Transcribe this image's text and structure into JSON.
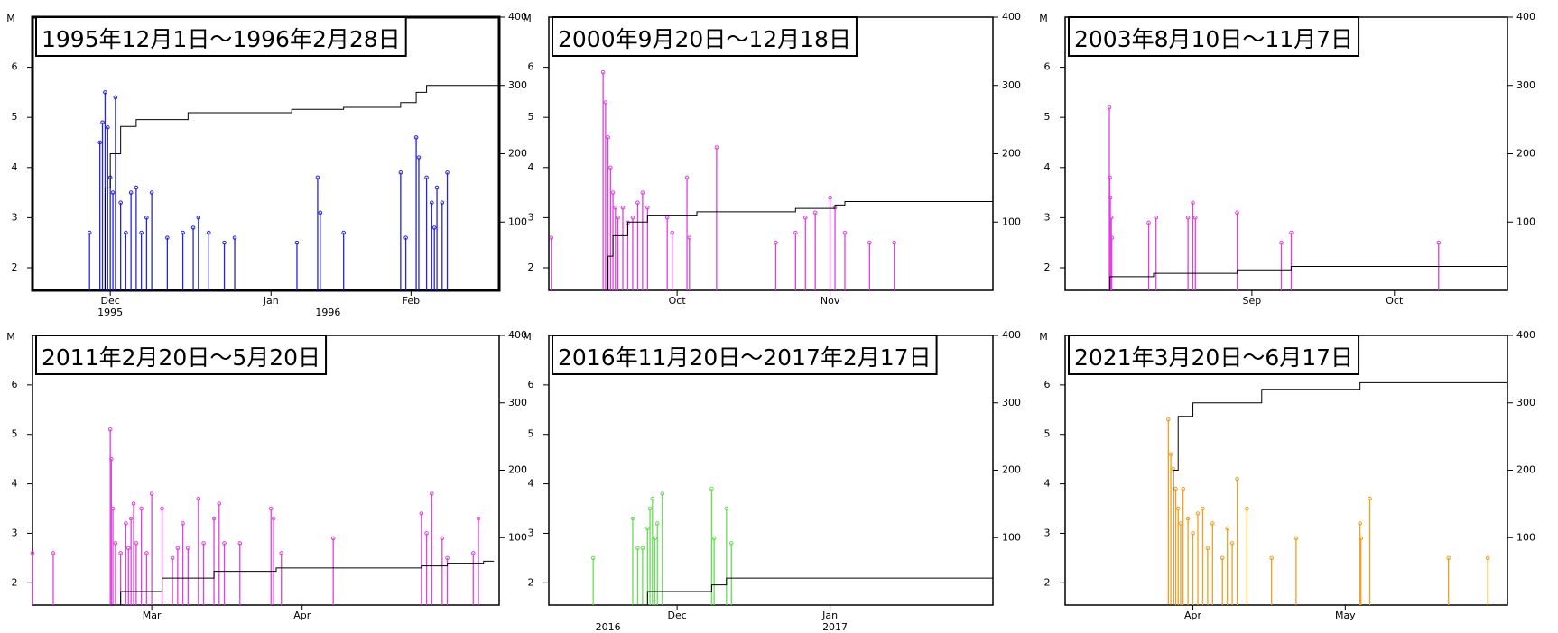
{
  "chart_data": [
    {
      "type": "stem",
      "title": "1995年12月1日～1996年2月28日",
      "ylabel": "M",
      "xlim": [
        0,
        90
      ],
      "ylim": [
        1.55,
        7
      ],
      "y2lim": [
        0,
        400
      ],
      "yticks": [
        2,
        3,
        4,
        5,
        6
      ],
      "y2ticks": [
        100,
        200,
        300,
        400
      ],
      "xticks": [
        {
          "value": 15,
          "label": "Dec"
        },
        {
          "value": 46,
          "label": "Jan"
        },
        {
          "value": 73,
          "label": "Feb"
        }
      ],
      "xticks_year": [
        {
          "value": 15,
          "label": "1995"
        },
        {
          "value": 57,
          "label": "1996"
        }
      ],
      "series": [
        {
          "type": "stem",
          "color": "#2626d9",
          "x": [
            11,
            13,
            13.5,
            14,
            14.5,
            15,
            15.5,
            16,
            17,
            18,
            19,
            20,
            21,
            22,
            23,
            26,
            29,
            31,
            32,
            34,
            37,
            39,
            51,
            55,
            55.5,
            60,
            71,
            72,
            74,
            74.5,
            76,
            77,
            77.5,
            78,
            79,
            80
          ],
          "values": [
            2.7,
            4.5,
            4.9,
            5.5,
            4.8,
            3.8,
            3.5,
            5.4,
            3.3,
            2.7,
            3.5,
            3.6,
            2.7,
            3.0,
            3.5,
            2.6,
            2.7,
            2.8,
            3.0,
            2.7,
            2.5,
            2.6,
            2.5,
            3.8,
            3.1,
            2.7,
            3.9,
            2.6,
            4.6,
            4.2,
            3.8,
            3.3,
            2.8,
            3.6,
            3.3,
            3.9
          ]
        },
        {
          "type": "step",
          "axis": "y2",
          "color": "#000000",
          "x": [
            13,
            14,
            15,
            17,
            20,
            30,
            50,
            60,
            71,
            74,
            76,
            90
          ],
          "values": [
            0,
            150,
            200,
            240,
            250,
            260,
            265,
            268,
            275,
            290,
            300,
            300
          ]
        }
      ]
    },
    {
      "type": "stem",
      "title": "2000年9月20日～12月18日",
      "ylabel": "M",
      "xlim": [
        0,
        90
      ],
      "ylim": [
        1.55,
        7
      ],
      "y2lim": [
        0,
        400
      ],
      "yticks": [
        2,
        3,
        4,
        5,
        6
      ],
      "y2ticks": [
        100,
        200,
        300,
        400
      ],
      "xticks": [
        {
          "value": 26,
          "label": "Oct"
        },
        {
          "value": 57,
          "label": "Nov"
        }
      ],
      "xticks_year": [],
      "series": [
        {
          "type": "stem",
          "color": "#e040e0",
          "x": [
            0.5,
            11,
            11.5,
            12,
            12.5,
            13,
            13.5,
            14,
            15,
            16,
            17,
            18,
            19,
            20,
            24,
            25,
            28,
            28.5,
            34,
            46,
            50,
            52,
            54,
            57,
            58,
            60,
            65,
            70
          ],
          "values": [
            2.6,
            5.9,
            5.3,
            4.6,
            4.0,
            3.5,
            3.2,
            3.0,
            3.2,
            2.9,
            3.0,
            3.3,
            3.5,
            3.2,
            3.0,
            2.7,
            3.8,
            2.6,
            4.4,
            2.5,
            2.7,
            3.0,
            3.1,
            3.4,
            3.2,
            2.7,
            2.5,
            2.5
          ]
        },
        {
          "type": "step",
          "axis": "y2",
          "color": "#000000",
          "x": [
            11,
            12,
            13,
            16,
            20,
            30,
            50,
            58,
            60,
            90
          ],
          "values": [
            0,
            50,
            80,
            100,
            110,
            115,
            120,
            125,
            130,
            130
          ]
        }
      ]
    },
    {
      "type": "stem",
      "title": "2003年8月10日～11月7日",
      "ylabel": "M",
      "xlim": [
        0,
        90
      ],
      "ylim": [
        1.55,
        7
      ],
      "y2lim": [
        0,
        400
      ],
      "yticks": [
        2,
        3,
        4,
        5,
        6
      ],
      "y2ticks": [
        100,
        200,
        300,
        400
      ],
      "xticks": [
        {
          "value": 38,
          "label": "Sep"
        },
        {
          "value": 67,
          "label": "Oct"
        }
      ],
      "xticks_year": [],
      "series": [
        {
          "type": "stem",
          "color": "#e040e0",
          "x": [
            9,
            9.1,
            9.2,
            9.4,
            9.5,
            17,
            18.5,
            25,
            26,
            26.5,
            35,
            44,
            46,
            76
          ],
          "values": [
            5.2,
            3.8,
            3.4,
            3.0,
            2.6,
            2.9,
            3.0,
            3.0,
            3.3,
            3.0,
            3.1,
            2.5,
            2.7,
            2.5
          ]
        },
        {
          "type": "step",
          "axis": "y2",
          "color": "#000000",
          "x": [
            9,
            9.1,
            18,
            35,
            46,
            90
          ],
          "values": [
            0,
            20,
            25,
            30,
            35,
            35
          ]
        }
      ]
    },
    {
      "type": "stem",
      "title": "2011年2月20日～5月20日",
      "ylabel": "M",
      "xlim": [
        0,
        90
      ],
      "ylim": [
        1.55,
        7
      ],
      "y2lim": [
        0,
        400
      ],
      "yticks": [
        2,
        3,
        4,
        5,
        6
      ],
      "y2ticks": [
        100,
        200,
        300,
        400
      ],
      "xticks": [
        {
          "value": 23,
          "label": "Mar"
        },
        {
          "value": 52,
          "label": "Apr"
        }
      ],
      "xticks_year": [],
      "series": [
        {
          "type": "stem",
          "color": "#e040e0",
          "x": [
            0,
            4,
            15,
            15.2,
            15.5,
            16,
            17,
            18,
            18.5,
            19,
            19.5,
            20,
            21,
            22,
            23,
            25,
            27,
            28,
            29,
            30,
            32,
            33,
            35,
            36,
            37,
            40,
            46,
            46.5,
            48,
            58,
            75,
            76,
            77,
            79,
            80,
            85,
            86
          ],
          "values": [
            2.6,
            2.6,
            5.1,
            4.5,
            3.5,
            2.8,
            2.6,
            3.2,
            2.7,
            3.3,
            3.6,
            2.8,
            3.5,
            2.6,
            3.8,
            3.5,
            2.5,
            2.7,
            3.2,
            2.7,
            3.7,
            2.8,
            3.3,
            3.6,
            2.8,
            2.8,
            3.5,
            3.3,
            2.6,
            2.9,
            3.4,
            3.0,
            3.8,
            2.9,
            2.5,
            2.6,
            3.3
          ]
        },
        {
          "type": "step",
          "axis": "y2",
          "color": "#000000",
          "x": [
            15,
            17,
            25,
            35,
            47,
            75,
            80,
            87,
            89
          ],
          "values": [
            0,
            20,
            40,
            50,
            55,
            58,
            62,
            65,
            65
          ]
        }
      ]
    },
    {
      "type": "stem",
      "title": "2016年11月20日～2017年2月17日",
      "ylabel": "M",
      "xlim": [
        0,
        90
      ],
      "ylim": [
        1.55,
        7
      ],
      "y2lim": [
        0,
        400
      ],
      "yticks": [
        2,
        3,
        4,
        5,
        6
      ],
      "y2ticks": [
        100,
        200,
        300,
        400
      ],
      "xticks": [
        {
          "value": 26,
          "label": "Dec"
        },
        {
          "value": 57,
          "label": "Jan"
        }
      ],
      "xticks_year": [
        {
          "value": 12,
          "label": "2016"
        },
        {
          "value": 58,
          "label": "2017"
        }
      ],
      "series": [
        {
          "type": "stem",
          "color": "#66dd55",
          "x": [
            9,
            17,
            18,
            19,
            20,
            20.5,
            21,
            21.5,
            22,
            23,
            33,
            33.5,
            36,
            37
          ],
          "values": [
            2.5,
            3.3,
            2.7,
            2.7,
            3.1,
            3.5,
            3.7,
            2.9,
            3.2,
            3.8,
            3.9,
            2.9,
            3.5,
            2.8
          ]
        },
        {
          "type": "step",
          "axis": "y2",
          "color": "#000000",
          "x": [
            17,
            20,
            33,
            36,
            90
          ],
          "values": [
            0,
            20,
            30,
            40,
            40
          ]
        }
      ]
    },
    {
      "type": "stem",
      "title": "2021年3月20日～6月17日",
      "ylabel": "M",
      "xlim": [
        0,
        90
      ],
      "ylim": [
        1.55,
        7
      ],
      "y2lim": [
        0,
        400
      ],
      "yticks": [
        2,
        3,
        4,
        5,
        6
      ],
      "y2ticks": [
        100,
        200,
        300,
        400
      ],
      "xticks": [
        {
          "value": 26,
          "label": "Apr"
        },
        {
          "value": 57,
          "label": "May"
        }
      ],
      "xticks_year": [],
      "series": [
        {
          "type": "stem",
          "color": "#f0a020",
          "x": [
            21,
            21.5,
            22,
            22.5,
            23,
            23.5,
            24,
            25,
            26,
            27,
            28,
            29,
            30,
            32,
            33,
            34,
            35,
            37,
            42,
            47,
            60,
            60.2,
            62,
            78,
            86
          ],
          "values": [
            5.3,
            4.6,
            4.3,
            3.9,
            3.5,
            3.2,
            3.9,
            3.3,
            3.0,
            3.4,
            3.5,
            2.7,
            3.2,
            2.5,
            3.1,
            2.8,
            4.1,
            3.5,
            2.5,
            2.9,
            3.2,
            2.9,
            3.7,
            2.5,
            2.5
          ]
        },
        {
          "type": "step",
          "axis": "y2",
          "color": "#000000",
          "x": [
            20,
            22,
            23,
            26,
            40,
            60,
            90
          ],
          "values": [
            0,
            200,
            280,
            300,
            320,
            330,
            340
          ]
        }
      ]
    }
  ]
}
